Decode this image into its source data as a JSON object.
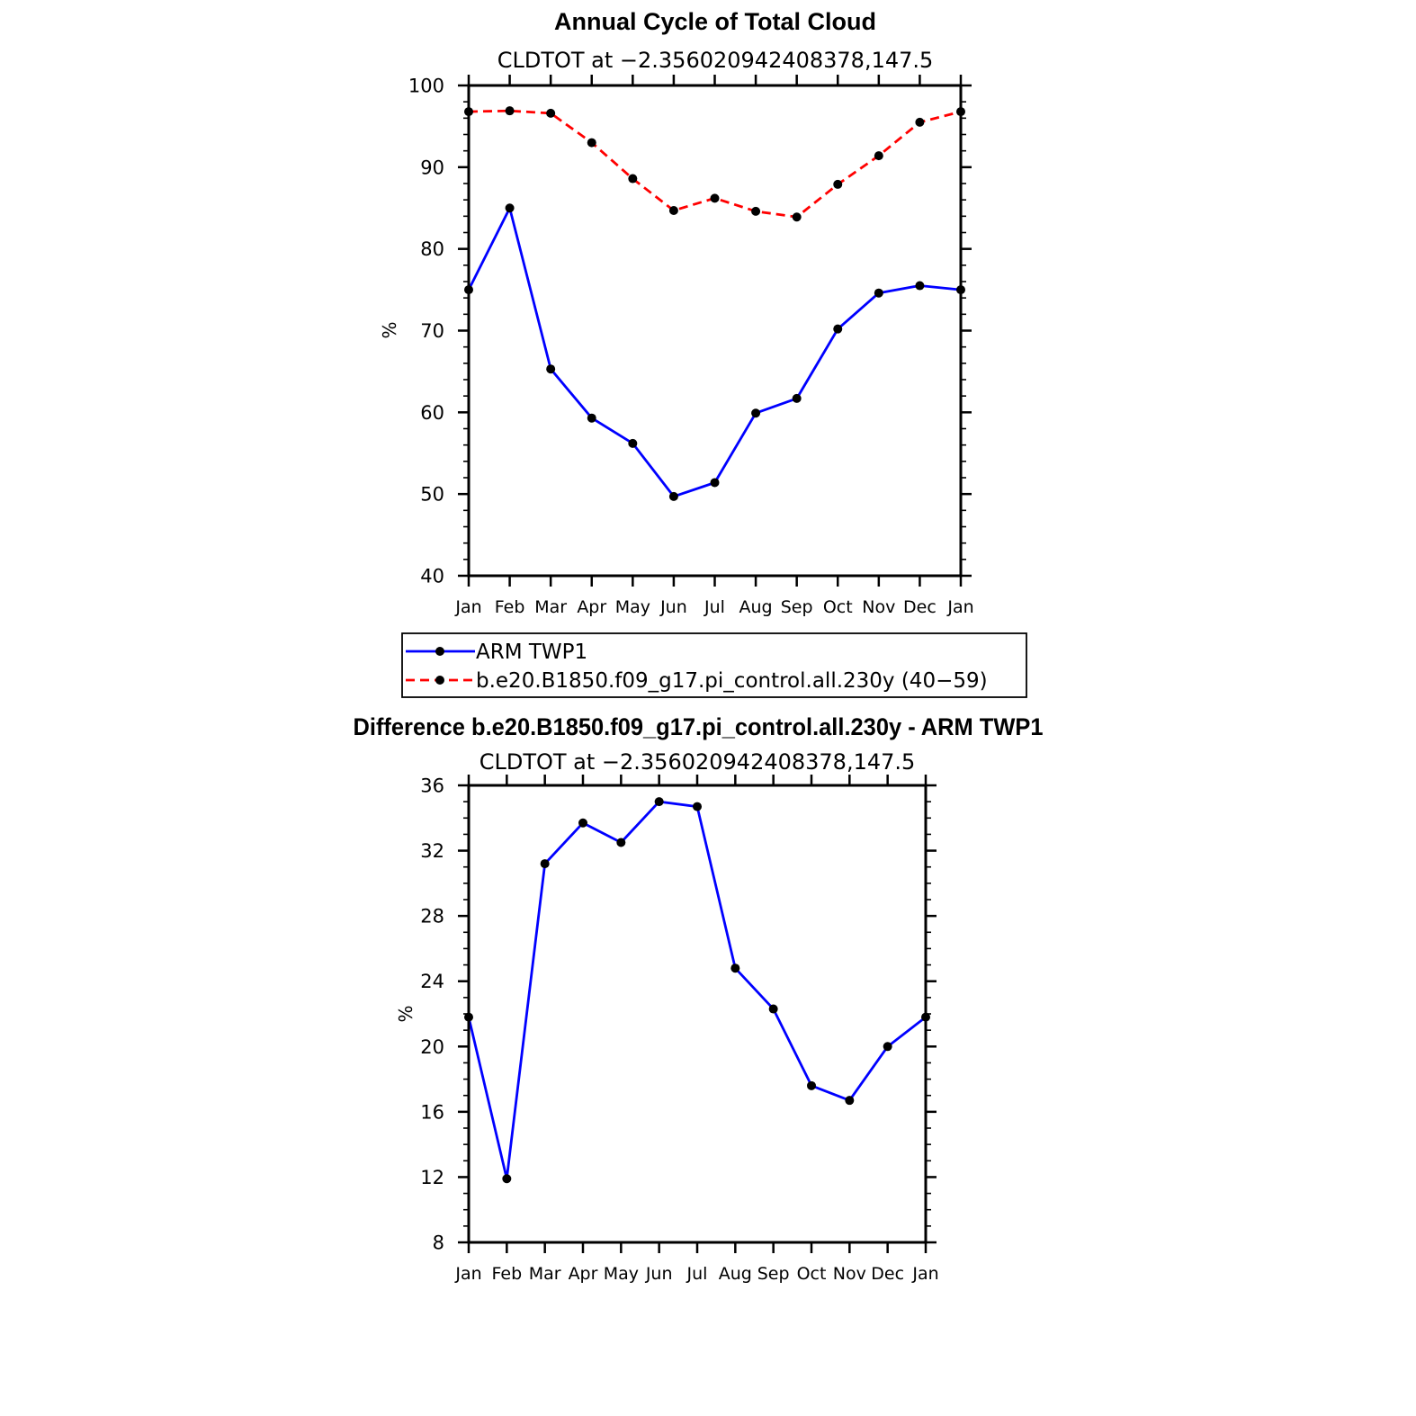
{
  "chart_data": [
    {
      "type": "line",
      "title": "Annual Cycle of Total Cloud",
      "subtitle": "CLDTOT at −2.356020942408378,147.5",
      "ylabel": "%",
      "ylim": [
        40,
        100
      ],
      "yticks": [
        40,
        50,
        60,
        70,
        80,
        90,
        100
      ],
      "categories": [
        "Jan",
        "Feb",
        "Mar",
        "Apr",
        "May",
        "Jun",
        "Jul",
        "Aug",
        "Sep",
        "Oct",
        "Nov",
        "Dec",
        "Jan"
      ],
      "legend": "below",
      "series": [
        {
          "name": "ARM TWP1",
          "color": "#0000ff",
          "style": "solid",
          "values": [
            75.0,
            85.0,
            65.3,
            59.3,
            56.2,
            49.7,
            51.4,
            59.9,
            61.7,
            70.2,
            74.6,
            75.5,
            75.0
          ]
        },
        {
          "name": "b.e20.B1850.f09_g17.pi_control.all.230y (40−59)",
          "color": "#ff0000",
          "style": "dashed",
          "values": [
            96.8,
            96.9,
            96.6,
            93.0,
            88.6,
            84.7,
            86.2,
            84.6,
            83.9,
            87.9,
            91.4,
            95.5,
            96.8
          ]
        }
      ]
    },
    {
      "type": "line",
      "title": "Difference b.e20.B1850.f09_g17.pi_control.all.230y - ARM TWP1",
      "subtitle": "CLDTOT at −2.356020942408378,147.5",
      "ylabel": "%",
      "ylim": [
        8,
        36
      ],
      "yticks": [
        8,
        12,
        16,
        20,
        24,
        28,
        32,
        36
      ],
      "categories": [
        "Jan",
        "Feb",
        "Mar",
        "Apr",
        "May",
        "Jun",
        "Jul",
        "Aug",
        "Sep",
        "Oct",
        "Nov",
        "Dec",
        "Jan"
      ],
      "series": [
        {
          "color": "#0000ff",
          "style": "solid",
          "values": [
            21.8,
            11.9,
            31.2,
            33.7,
            32.5,
            35.0,
            34.7,
            24.8,
            22.3,
            17.6,
            16.7,
            20.0,
            21.8
          ]
        }
      ]
    }
  ]
}
